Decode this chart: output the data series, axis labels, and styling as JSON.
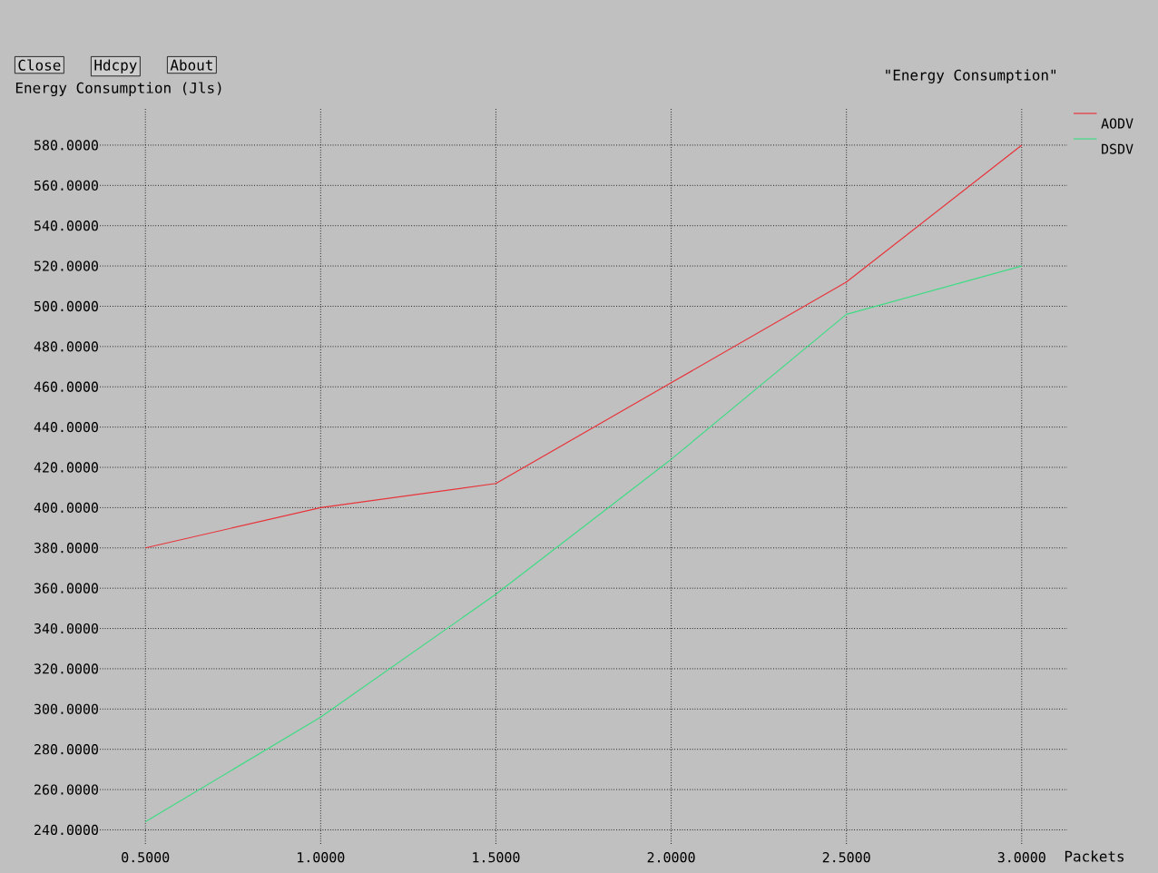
{
  "chart_data": {
    "type": "line",
    "title": "\"Energy Consumption\"",
    "xlabel": "Packets",
    "ylabel": "Energy Consumption (Jls)",
    "annotations": [
      "Close",
      "Hdcpy",
      "About"
    ],
    "x": [
      0.5,
      1.0,
      1.5,
      2.0,
      2.5,
      3.0
    ],
    "series": [
      {
        "name": "AODV",
        "color": "#e8333a",
        "values": [
          380,
          400,
          412,
          462,
          512,
          580
        ]
      },
      {
        "name": "DSDV",
        "color": "#3ddc84",
        "values": [
          244,
          296,
          357,
          424,
          496,
          520
        ]
      }
    ],
    "xlim": [
      0.37,
      3.13
    ],
    "ylim": [
      233,
      598
    ],
    "xticks": [
      {
        "value": 0.5,
        "label": "0.5000"
      },
      {
        "value": 1.0,
        "label": "1.0000"
      },
      {
        "value": 1.5,
        "label": "1.5000"
      },
      {
        "value": 2.0,
        "label": "2.0000"
      },
      {
        "value": 2.5,
        "label": "2.5000"
      },
      {
        "value": 3.0,
        "label": "3.0000"
      }
    ],
    "yticks": [
      {
        "value": 240,
        "label": "240.0000"
      },
      {
        "value": 260,
        "label": "260.0000"
      },
      {
        "value": 280,
        "label": "280.0000"
      },
      {
        "value": 300,
        "label": "300.0000"
      },
      {
        "value": 320,
        "label": "320.0000"
      },
      {
        "value": 340,
        "label": "340.0000"
      },
      {
        "value": 360,
        "label": "360.0000"
      },
      {
        "value": 380,
        "label": "380.0000"
      },
      {
        "value": 400,
        "label": "400.0000"
      },
      {
        "value": 420,
        "label": "420.0000"
      },
      {
        "value": 440,
        "label": "440.0000"
      },
      {
        "value": 460,
        "label": "460.0000"
      },
      {
        "value": 480,
        "label": "480.0000"
      },
      {
        "value": 500,
        "label": "500.0000"
      },
      {
        "value": 520,
        "label": "520.0000"
      },
      {
        "value": 540,
        "label": "540.0000"
      },
      {
        "value": 560,
        "label": "560.0000"
      },
      {
        "value": 580,
        "label": "580.0000"
      }
    ],
    "grid": true,
    "legend": "top right",
    "marker": "none",
    "line_style": "solid"
  }
}
